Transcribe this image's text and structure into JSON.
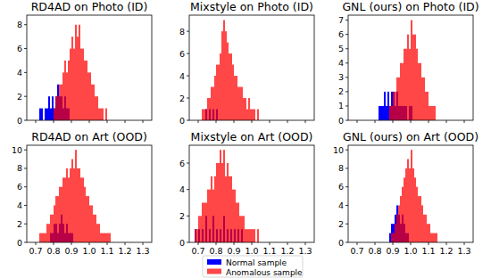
{
  "chart_data": [
    {
      "type": "histogram",
      "title": "RD4AD on Photo (ID)",
      "tick_labels": "y",
      "bins": [
        0.68,
        0.69,
        0.7,
        0.71,
        0.72,
        0.73,
        0.74,
        0.75,
        0.76,
        0.77,
        0.78,
        0.79,
        0.8,
        0.81,
        0.82,
        0.83,
        0.84,
        0.85,
        0.86,
        0.87,
        0.88,
        0.89,
        0.9,
        0.91,
        0.92,
        0.93,
        0.94,
        0.95,
        0.96,
        0.97,
        0.98,
        0.99,
        1.0,
        1.01,
        1.02,
        1.03,
        1.04,
        1.05,
        1.06,
        1.07,
        1.08,
        1.09,
        1.1,
        1.11,
        1.12,
        1.13,
        1.14,
        1.15,
        1.16
      ],
      "series": [
        {
          "name": "Normal sample",
          "color": "#0000ff",
          "values": [
            0,
            0,
            0,
            0,
            1,
            1,
            0,
            1,
            1,
            2,
            1,
            2,
            1,
            2,
            3,
            2,
            2,
            1,
            2,
            1,
            1,
            0,
            0,
            0,
            0,
            0,
            0,
            0,
            0,
            0,
            0,
            0,
            0,
            0,
            0,
            0,
            0,
            0,
            0,
            0,
            0,
            0,
            0,
            0,
            0,
            0,
            0,
            0
          ]
        },
        {
          "name": "Anomalous sample",
          "color": "#ff0000",
          "values": [
            0,
            0,
            0,
            0,
            0,
            0,
            0,
            0,
            0,
            0,
            0,
            0,
            1,
            2,
            2,
            3,
            3,
            4,
            5,
            4,
            5,
            6,
            7,
            6,
            8,
            7,
            8,
            6,
            6,
            5,
            5,
            4,
            4,
            3,
            3,
            2,
            2,
            1,
            1,
            1,
            0,
            1,
            0,
            0,
            0,
            0,
            0,
            0
          ]
        }
      ],
      "xlim": [
        0.65,
        1.35
      ],
      "xticks": [
        0.7,
        0.8,
        0.9,
        {
          "value": 1,
          "label": "1.0"
        },
        1.1,
        1.2,
        1.3
      ],
      "ylim": [
        0,
        8.8
      ],
      "yticks": [
        0,
        2,
        4,
        6,
        8
      ]
    },
    {
      "type": "histogram",
      "title": "Mixstyle on Photo (ID)",
      "tick_labels": "y",
      "bins": [
        0.68,
        0.69,
        0.7,
        0.71,
        0.72,
        0.73,
        0.74,
        0.75,
        0.76,
        0.77,
        0.78,
        0.79,
        0.8,
        0.81,
        0.82,
        0.83,
        0.84,
        0.85,
        0.86,
        0.87,
        0.88,
        0.89,
        0.9,
        0.91,
        0.92,
        0.93,
        0.94,
        0.95,
        0.96,
        0.97,
        0.98,
        0.99,
        1.0,
        1.01,
        1.02,
        1.03,
        1.04,
        1.05,
        1.06,
        1.07,
        1.08,
        1.09,
        1.1,
        1.11,
        1.12,
        1.13,
        1.14,
        1.15,
        1.16
      ],
      "series": [
        {
          "name": "Normal sample",
          "color": "#0000ff",
          "values": [
            0,
            0,
            0,
            0,
            0,
            0,
            1,
            0,
            1,
            0,
            1,
            0,
            1,
            0,
            0,
            0,
            0,
            0,
            0,
            0,
            0,
            0,
            0,
            0,
            0,
            0,
            0,
            0,
            0,
            0,
            0,
            0,
            0,
            0,
            0,
            0,
            0,
            0,
            0,
            0,
            0,
            0,
            0,
            0,
            0,
            0,
            0,
            0
          ]
        },
        {
          "name": "Anomalous sample",
          "color": "#ff0000",
          "values": [
            0,
            0,
            0,
            0,
            1,
            1,
            1,
            2,
            2,
            3,
            3,
            4,
            5,
            5,
            6,
            8,
            9,
            8,
            7,
            6,
            6,
            5,
            4,
            4,
            3,
            3,
            3,
            2,
            2,
            1,
            2,
            1,
            1,
            1,
            0,
            1,
            0,
            0,
            0,
            0,
            0,
            0,
            0,
            0,
            0,
            0,
            0,
            0
          ]
        }
      ],
      "xlim": [
        0.65,
        1.35
      ],
      "xticks": [
        0.7,
        0.8,
        0.9,
        {
          "value": 1,
          "label": "1.0"
        },
        1.1,
        1.2,
        1.3
      ],
      "ylim": [
        0,
        9.45
      ],
      "yticks": [
        0,
        2,
        4,
        6,
        8
      ]
    },
    {
      "type": "histogram",
      "title": "GNL (ours) on Photo (ID)",
      "tick_labels": "y",
      "bins": [
        0.68,
        0.69,
        0.7,
        0.71,
        0.72,
        0.73,
        0.74,
        0.75,
        0.76,
        0.77,
        0.78,
        0.79,
        0.8,
        0.81,
        0.82,
        0.83,
        0.84,
        0.85,
        0.86,
        0.87,
        0.88,
        0.89,
        0.9,
        0.91,
        0.92,
        0.93,
        0.94,
        0.95,
        0.96,
        0.97,
        0.98,
        0.99,
        1.0,
        1.01,
        1.02,
        1.03,
        1.04,
        1.05,
        1.06,
        1.07,
        1.08,
        1.09,
        1.1,
        1.11,
        1.12,
        1.13,
        1.14,
        1.15,
        1.16
      ],
      "series": [
        {
          "name": "Normal sample",
          "color": "#0000ff",
          "values": [
            0,
            0,
            0,
            0,
            0,
            0,
            0,
            0,
            0,
            0,
            0,
            0,
            0,
            0,
            1,
            1,
            1,
            2,
            1,
            2,
            1,
            2,
            2,
            1,
            2,
            1,
            1,
            1,
            1,
            1,
            0,
            1,
            1,
            0,
            0,
            0,
            0,
            0,
            0,
            0,
            0,
            0,
            0,
            0,
            0,
            0,
            0,
            0
          ]
        },
        {
          "name": "Anomalous sample",
          "color": "#ff0000",
          "values": [
            0,
            0,
            0,
            0,
            0,
            0,
            0,
            0,
            0,
            0,
            0,
            0,
            0,
            0,
            0,
            0,
            0,
            0,
            0,
            0,
            1,
            1,
            2,
            2,
            3,
            3,
            4,
            4,
            5,
            5,
            6,
            5,
            7,
            6,
            6,
            5,
            4,
            4,
            3,
            3,
            2,
            2,
            1,
            1,
            1,
            1,
            0,
            0
          ]
        }
      ],
      "xlim": [
        0.65,
        1.35
      ],
      "xticks": [
        0.7,
        0.8,
        0.9,
        {
          "value": 1,
          "label": "1.0"
        },
        1.1,
        1.2,
        1.3
      ],
      "ylim": [
        0,
        7.35
      ],
      "yticks": [
        0,
        1,
        2,
        3,
        4,
        5,
        6,
        7
      ]
    },
    {
      "type": "histogram",
      "title": "RD4AD on Art (OOD)",
      "bins": [
        0.68,
        0.69,
        0.7,
        0.71,
        0.72,
        0.73,
        0.74,
        0.75,
        0.76,
        0.77,
        0.78,
        0.79,
        0.8,
        0.81,
        0.82,
        0.83,
        0.84,
        0.85,
        0.86,
        0.87,
        0.88,
        0.89,
        0.9,
        0.91,
        0.92,
        0.93,
        0.94,
        0.95,
        0.96,
        0.97,
        0.98,
        0.99,
        1.0,
        1.01,
        1.02,
        1.03,
        1.04,
        1.05,
        1.06,
        1.07,
        1.08,
        1.09,
        1.1,
        1.11,
        1.12,
        1.13,
        1.14,
        1.15,
        1.16
      ],
      "series": [
        {
          "name": "Normal sample",
          "color": "#0000ff",
          "values": [
            0,
            0,
            0,
            0,
            0,
            0,
            0,
            0,
            0,
            0,
            1,
            1,
            2,
            2,
            1,
            2,
            3,
            2,
            1,
            2,
            1,
            1,
            1,
            0,
            0,
            0,
            0,
            0,
            0,
            0,
            0,
            0,
            0,
            0,
            0,
            0,
            0,
            0,
            0,
            0,
            0,
            0,
            0,
            0,
            0,
            0,
            0,
            0
          ]
        },
        {
          "name": "Anomalous sample",
          "color": "#ff0000",
          "values": [
            0,
            0,
            0,
            0,
            1,
            1,
            1,
            1,
            2,
            2,
            3,
            3,
            4,
            5,
            5,
            6,
            6,
            7,
            7,
            8,
            7,
            8,
            9,
            8,
            10,
            8,
            8,
            7,
            7,
            6,
            5,
            5,
            4,
            4,
            3,
            3,
            2,
            2,
            1,
            1,
            1,
            1,
            1,
            1,
            0,
            0,
            0,
            0
          ]
        }
      ],
      "xlim": [
        0.65,
        1.35
      ],
      "xticks": [
        0.7,
        0.8,
        0.9,
        {
          "value": 1,
          "label": "1.0"
        },
        1.1,
        1.2,
        1.3
      ],
      "ylim": [
        0,
        10.5
      ],
      "yticks": [
        0,
        2,
        4,
        6,
        8,
        10
      ]
    },
    {
      "type": "histogram",
      "title": "Mixstyle on Art (OOD)",
      "legend": "bottom",
      "bins": [
        0.68,
        0.69,
        0.7,
        0.71,
        0.72,
        0.73,
        0.74,
        0.75,
        0.76,
        0.77,
        0.78,
        0.79,
        0.8,
        0.81,
        0.82,
        0.83,
        0.84,
        0.85,
        0.86,
        0.87,
        0.88,
        0.89,
        0.9,
        0.91,
        0.92,
        0.93,
        0.94,
        0.95,
        0.96,
        0.97,
        0.98,
        0.99,
        1.0,
        1.01,
        1.02,
        1.03,
        1.04,
        1.05,
        1.06,
        1.07,
        1.08,
        1.09,
        1.1,
        1.11,
        1.12,
        1.13,
        1.14,
        1.15,
        1.16
      ],
      "series": [
        {
          "name": "Normal sample",
          "color": "#0000ff",
          "values": [
            1,
            0,
            1,
            0,
            1,
            0,
            2,
            0,
            1,
            0,
            2,
            0,
            1,
            0,
            1,
            0,
            2,
            0,
            1,
            0,
            1,
            0,
            1,
            0,
            1,
            0,
            1,
            0,
            0,
            0,
            0,
            0,
            0,
            0,
            0,
            0,
            0,
            0,
            0,
            0,
            0,
            0,
            0,
            0,
            0,
            0,
            0,
            0
          ]
        },
        {
          "name": "Anomalous sample",
          "color": "#ff0000",
          "values": [
            1,
            1,
            2,
            2,
            3,
            3,
            3,
            4,
            4,
            5,
            4,
            5,
            6,
            6,
            7,
            6,
            7,
            5,
            6,
            5,
            5,
            4,
            4,
            3,
            3,
            2,
            2,
            2,
            1,
            1,
            1,
            1,
            1,
            1,
            0,
            1,
            0,
            0,
            0,
            0,
            0,
            0,
            0,
            0,
            0,
            0,
            0,
            0
          ]
        }
      ],
      "xlim": [
        0.65,
        1.35
      ],
      "xticks": [
        0.7,
        0.8,
        0.9,
        {
          "value": 1,
          "label": "1.0"
        },
        1.1,
        1.2,
        1.3
      ],
      "ylim": [
        0,
        7.35
      ],
      "yticks": [
        0,
        2,
        4,
        6
      ]
    },
    {
      "type": "histogram",
      "title": "GNL (ours) on Art (OOD)",
      "bins": [
        0.68,
        0.69,
        0.7,
        0.71,
        0.72,
        0.73,
        0.74,
        0.75,
        0.76,
        0.77,
        0.78,
        0.79,
        0.8,
        0.81,
        0.82,
        0.83,
        0.84,
        0.85,
        0.86,
        0.87,
        0.88,
        0.89,
        0.9,
        0.91,
        0.92,
        0.93,
        0.94,
        0.95,
        0.96,
        0.97,
        0.98,
        0.99,
        1.0,
        1.01,
        1.02,
        1.03,
        1.04,
        1.05,
        1.06,
        1.07,
        1.08,
        1.09,
        1.1,
        1.11,
        1.12,
        1.13,
        1.14,
        1.15,
        1.16
      ],
      "series": [
        {
          "name": "Normal sample",
          "color": "#0000ff",
          "values": [
            0,
            0,
            0,
            0,
            0,
            0,
            0,
            0,
            0,
            0,
            0,
            0,
            0,
            0,
            0,
            0,
            0,
            0,
            0,
            0,
            1,
            2,
            2,
            3,
            4,
            3,
            2,
            3,
            2,
            1,
            1,
            0,
            0,
            0,
            0,
            0,
            0,
            0,
            0,
            0,
            0,
            0,
            0,
            0,
            0,
            0,
            0,
            0
          ]
        },
        {
          "name": "Anomalous sample",
          "color": "#ff0000",
          "values": [
            0,
            0,
            0,
            0,
            0,
            0,
            0,
            0,
            0,
            0,
            0,
            0,
            0,
            0,
            0,
            0,
            0,
            0,
            0,
            0,
            0,
            1,
            1,
            2,
            3,
            4,
            5,
            6,
            7,
            8,
            9,
            8,
            10,
            8,
            7,
            6,
            5,
            5,
            4,
            3,
            3,
            2,
            2,
            1,
            1,
            1,
            1,
            0
          ]
        }
      ],
      "xlim": [
        0.65,
        1.35
      ],
      "xticks": [
        0.7,
        0.8,
        0.9,
        {
          "value": 1,
          "label": "1.0"
        },
        1.1,
        1.2,
        1.3
      ],
      "ylim": [
        0,
        10.5
      ],
      "yticks": [
        0,
        2,
        4,
        6,
        8,
        10
      ]
    }
  ]
}
